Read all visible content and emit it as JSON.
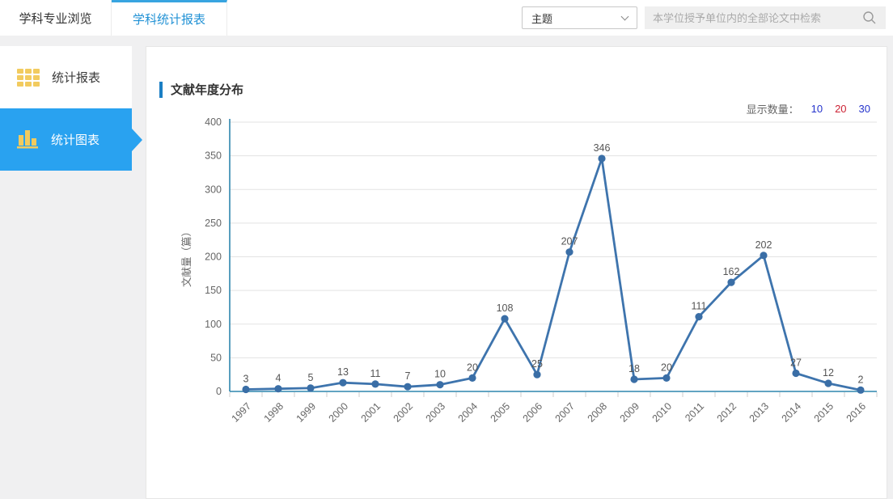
{
  "window": {
    "tabs": [
      {
        "label": "学科专业浏览",
        "active": false
      },
      {
        "label": "学科统计报表",
        "active": true
      }
    ]
  },
  "toolbar": {
    "select_value": "主题",
    "search_placeholder": "本学位授予单位内的全部论文中检索"
  },
  "sidebar": {
    "items": [
      {
        "label": "统计报表",
        "icon": "grid-icon",
        "active": false
      },
      {
        "label": "统计图表",
        "icon": "bar-chart-icon",
        "active": true
      }
    ]
  },
  "main": {
    "section_title": "文献年度分布",
    "display_count": {
      "label": "显示数量：",
      "options": [
        "10",
        "20",
        "30"
      ],
      "active": "20"
    }
  },
  "colors": {
    "tab_active_text": "#2292d5",
    "tab_top_border": "#38a4e0",
    "sidebar_active_bg": "#29a2f0",
    "icon_yellow": "#f2cb5f",
    "title_bar_blue": "#1b7fc4",
    "count_option_blue": "#2433cc",
    "count_option_active_red": "#cc2233"
  },
  "chart_data": {
    "type": "line",
    "title": "文献年度分布",
    "categories": [
      "1997",
      "1998",
      "1999",
      "2000",
      "2001",
      "2002",
      "2003",
      "2004",
      "2005",
      "2006",
      "2007",
      "2008",
      "2009",
      "2010",
      "2011",
      "2012",
      "2013",
      "2014",
      "2015",
      "2016"
    ],
    "values": [
      3,
      4,
      5,
      13,
      11,
      7,
      10,
      20,
      108,
      25,
      207,
      346,
      18,
      20,
      111,
      162,
      202,
      27,
      12,
      2
    ],
    "xlabel": "",
    "ylabel": "文献量（篇）",
    "ylim": [
      0,
      400
    ],
    "ytick_step": 50,
    "grid": true,
    "legend": "none",
    "x_label_rotation": -45,
    "line_color": "#3e74ad",
    "point_color": "#3a6ea6",
    "axis_color": "#2f86ae",
    "grid_color": "#e3e3e3",
    "tick_color": "#cccccc",
    "axis_label_color": "#666666",
    "value_label_color": "#555555"
  }
}
